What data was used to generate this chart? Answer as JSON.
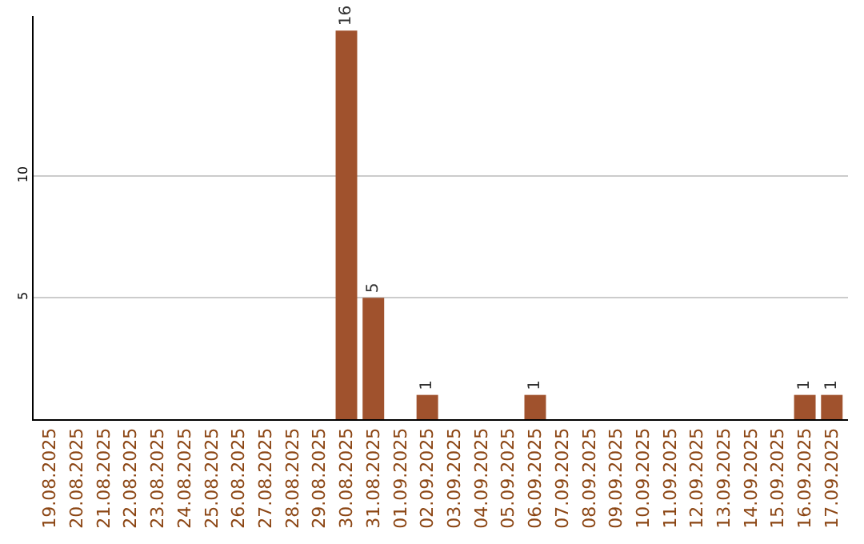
{
  "chart_data": {
    "type": "bar",
    "categories": [
      "19.08.2025",
      "20.08.2025",
      "21.08.2025",
      "22.08.2025",
      "23.08.2025",
      "24.08.2025",
      "25.08.2025",
      "26.08.2025",
      "27.08.2025",
      "28.08.2025",
      "29.08.2025",
      "30.08.2025",
      "31.08.2025",
      "01.09.2025",
      "02.09.2025",
      "03.09.2025",
      "04.09.2025",
      "05.09.2025",
      "06.09.2025",
      "07.09.2025",
      "08.09.2025",
      "09.09.2025",
      "10.09.2025",
      "11.09.2025",
      "12.09.2025",
      "13.09.2025",
      "14.09.2025",
      "15.09.2025",
      "16.09.2025",
      "17.09.2025"
    ],
    "values": [
      0,
      0,
      0,
      0,
      0,
      0,
      0,
      0,
      0,
      0,
      0,
      16,
      5,
      0,
      1,
      0,
      0,
      0,
      1,
      0,
      0,
      0,
      0,
      0,
      0,
      0,
      0,
      0,
      1,
      1
    ],
    "value_labels": [
      null,
      null,
      null,
      null,
      null,
      null,
      null,
      null,
      null,
      null,
      null,
      "16",
      "5",
      null,
      "1",
      null,
      null,
      null,
      "1",
      null,
      null,
      null,
      null,
      null,
      null,
      null,
      null,
      null,
      "1",
      "1"
    ],
    "color": "#a0522d",
    "ylim": [
      0,
      16.6
    ],
    "yticks": [
      5,
      10
    ],
    "grid": "y",
    "legend": false
  }
}
